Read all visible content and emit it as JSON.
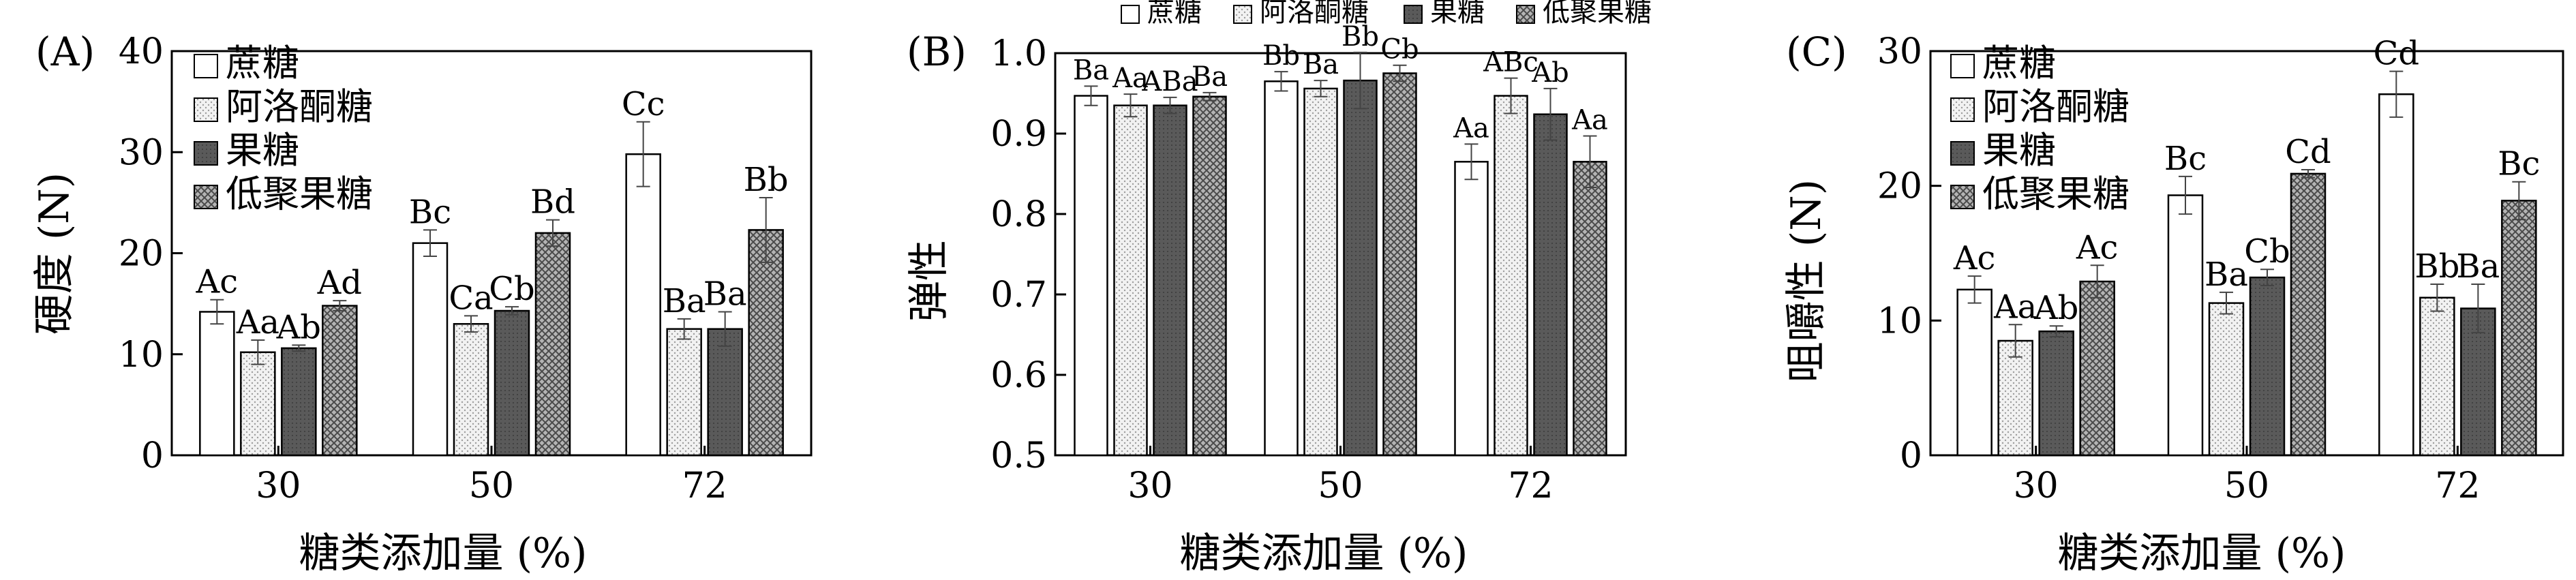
{
  "chart_data": [
    {
      "panel": "(A)",
      "type": "bar",
      "categories": [
        "30",
        "50",
        "72"
      ],
      "xlabel": "糖类添加量 (%)",
      "ylabel": "硬度 (N)",
      "ylim": [
        0,
        40
      ],
      "yticks": [
        "0",
        "10",
        "20",
        "30",
        "40"
      ],
      "legend_position": "top-left",
      "series": [
        {
          "name": "蔗糖",
          "values": [
            14.2,
            21.0,
            29.8
          ],
          "errors": [
            1.2,
            1.3,
            3.2
          ],
          "labels": [
            "Ac",
            "Bc",
            "Cc"
          ]
        },
        {
          "name": "阿洛酮糖",
          "values": [
            10.2,
            13.0,
            12.5
          ],
          "errors": [
            1.2,
            0.8,
            1.0
          ],
          "labels": [
            "Aa",
            "Ca",
            "Ba"
          ]
        },
        {
          "name": "果糖",
          "values": [
            10.6,
            14.3,
            12.5
          ],
          "errors": [
            0.3,
            0.4,
            1.7
          ],
          "labels": [
            "Ab",
            "Cb",
            "Ba"
          ]
        },
        {
          "name": "低聚果糖",
          "values": [
            14.8,
            22.0,
            22.3
          ],
          "errors": [
            0.5,
            1.3,
            3.2
          ],
          "labels": [
            "Ad",
            "Bd",
            "Bb"
          ]
        }
      ]
    },
    {
      "panel": "(B)",
      "type": "bar",
      "categories": [
        "30",
        "50",
        "72"
      ],
      "xlabel": "糖类添加量 (%)",
      "ylabel": "弹性",
      "ylim": [
        0.5,
        1.0
      ],
      "yticks": [
        "0.5",
        "0.6",
        "0.7",
        "0.8",
        "0.9",
        "1.0"
      ],
      "legend_position": "top",
      "series": [
        {
          "name": "蔗糖",
          "values": [
            0.947,
            0.965,
            0.865
          ],
          "errors": [
            0.012,
            0.012,
            0.022
          ],
          "labels": [
            "Ba",
            "Bb",
            "Aa"
          ]
        },
        {
          "name": "阿洛酮糖",
          "values": [
            0.935,
            0.956,
            0.947
          ],
          "errors": [
            0.014,
            0.01,
            0.022
          ],
          "labels": [
            "Aa",
            "Ba",
            "ABc"
          ]
        },
        {
          "name": "果糖",
          "values": [
            0.935,
            0.966,
            0.924
          ],
          "errors": [
            0.01,
            0.035,
            0.032
          ],
          "labels": [
            "ABa",
            "Bb",
            "Ab"
          ]
        },
        {
          "name": "低聚果糖",
          "values": [
            0.946,
            0.975,
            0.865
          ],
          "errors": [
            0.005,
            0.01,
            0.032
          ],
          "labels": [
            "Ba",
            "Cb",
            "Aa"
          ]
        }
      ]
    },
    {
      "panel": "(C)",
      "type": "bar",
      "categories": [
        "30",
        "50",
        "72"
      ],
      "xlabel": "糖类添加量 (%)",
      "ylabel": "咀嚼性 (N)",
      "ylim": [
        0,
        30
      ],
      "yticks": [
        "0",
        "10",
        "20",
        "30"
      ],
      "legend_position": "top-left",
      "series": [
        {
          "name": "蔗糖",
          "values": [
            12.3,
            19.3,
            26.8
          ],
          "errors": [
            1.0,
            1.4,
            1.7
          ],
          "labels": [
            "Ac",
            "Bc",
            "Cd"
          ]
        },
        {
          "name": "阿洛酮糖",
          "values": [
            8.5,
            11.3,
            11.7
          ],
          "errors": [
            1.2,
            0.8,
            1.0
          ],
          "labels": [
            "Aa",
            "Ba",
            "Bb"
          ]
        },
        {
          "name": "果糖",
          "values": [
            9.2,
            13.2,
            10.9
          ],
          "errors": [
            0.4,
            0.6,
            1.8
          ],
          "labels": [
            "Ab",
            "Cb",
            "Ba"
          ]
        },
        {
          "name": "低聚果糖",
          "values": [
            12.9,
            20.9,
            18.9
          ],
          "errors": [
            1.2,
            0.3,
            1.4
          ],
          "labels": [
            "Ac",
            "Cd",
            "Bc"
          ]
        }
      ]
    }
  ],
  "styles": {
    "series_fills": [
      "#ffffff",
      "#ececec",
      "#5a5a5a",
      "#9a9a9a"
    ],
    "series_patterns": [
      "plain",
      "light-dots",
      "dark-solid",
      "crosshatch"
    ],
    "stroke": "#000000",
    "error_bar": "#444444"
  }
}
